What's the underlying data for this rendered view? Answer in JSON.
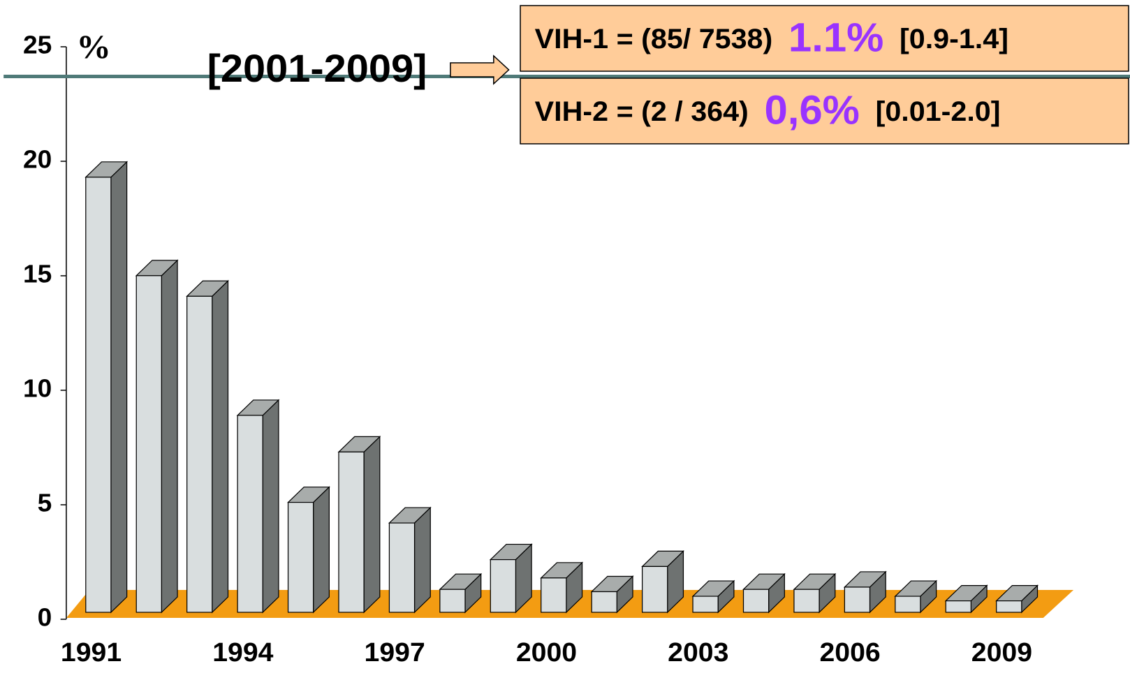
{
  "chart_data": {
    "type": "bar3d",
    "y_axis_label": "%",
    "categories": [
      "1991",
      null,
      null,
      "1994",
      null,
      null,
      "1997",
      null,
      null,
      "2000",
      null,
      null,
      "2003",
      null,
      null,
      "2006",
      null,
      null,
      "2009"
    ],
    "values": [
      19.0,
      14.7,
      13.8,
      8.6,
      4.8,
      7.0,
      3.9,
      1.0,
      2.3,
      1.5,
      0.9,
      2.0,
      0.7,
      1.0,
      1.0,
      1.1,
      0.7,
      0.5,
      0.5
    ],
    "color": "#d9dedf",
    "floor_color": "#f39c12",
    "ylim": [
      0,
      25
    ],
    "yticks": [
      0,
      5,
      10,
      15,
      20,
      25
    ],
    "reference_line": {
      "value": 23.4,
      "color": "#4f7a78"
    },
    "annotation": "[2001-2009]",
    "boxes": [
      {
        "text": "VIH-1 = (85/ 7538)",
        "rate": "1.1%",
        "ci": "[0.9-1.4]"
      },
      {
        "text": "VIH-2 = (2 / 364)",
        "rate": "0,6%",
        "ci": "[0.01-2.0]"
      }
    ]
  }
}
